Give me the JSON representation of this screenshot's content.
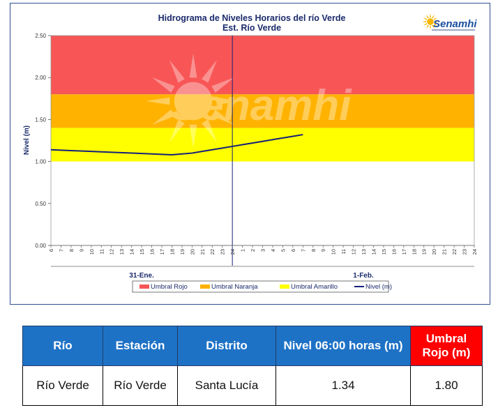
{
  "chart_data": {
    "type": "line",
    "title": "Hidrograma de Niveles Horarios del río Verde",
    "subtitle": "Est. Río Verde",
    "ylabel": "Nivel (m)",
    "ylim": [
      0,
      2.5
    ],
    "yticks": [
      "0.00",
      "0.50",
      "1.00",
      "1.50",
      "2.00",
      "2.50"
    ],
    "xticks": [
      "6",
      "7",
      "8",
      "9",
      "10",
      "11",
      "12",
      "13",
      "14",
      "15",
      "16",
      "17",
      "18",
      "19",
      "20",
      "21",
      "22",
      "23",
      "24",
      "1",
      "2",
      "3",
      "4",
      "5",
      "6",
      "7",
      "8",
      "9",
      "10",
      "11",
      "12",
      "13",
      "14",
      "15",
      "16",
      "17",
      "18",
      "19",
      "20",
      "21",
      "22",
      "23",
      "24"
    ],
    "day_labels": [
      {
        "label": "31-Ene.",
        "tick_index": 9
      },
      {
        "label": "1-Feb.",
        "tick_index": 31
      }
    ],
    "bands": [
      {
        "name": "Umbral Rojo",
        "from": 1.8,
        "to": 2.5,
        "color": "#f85656"
      },
      {
        "name": "Umbral Naranja",
        "from": 1.4,
        "to": 1.8,
        "color": "#ffb200"
      },
      {
        "name": "Umbral Amarillo",
        "from": 1.0,
        "to": 1.4,
        "color": "#ffff00"
      }
    ],
    "series": [
      {
        "name": "Nivel (m)",
        "color": "#14207a",
        "points": [
          [
            0,
            1.14
          ],
          [
            2,
            1.13
          ],
          [
            4,
            1.12
          ],
          [
            6,
            1.11
          ],
          [
            8,
            1.1
          ],
          [
            10,
            1.09
          ],
          [
            12,
            1.08
          ],
          [
            13,
            1.09
          ],
          [
            14,
            1.1
          ],
          [
            15,
            1.12
          ],
          [
            16,
            1.14
          ],
          [
            17,
            1.16
          ],
          [
            18,
            1.18
          ],
          [
            19,
            1.2
          ],
          [
            20,
            1.22
          ],
          [
            21,
            1.24
          ],
          [
            22,
            1.26
          ],
          [
            23,
            1.28
          ],
          [
            24,
            1.3
          ],
          [
            25,
            1.32
          ],
          [
            24.6,
            1.33
          ],
          [
            24.9,
            1.34
          ]
        ]
      }
    ],
    "legend": [
      "Umbral Rojo",
      "Umbral Naranja",
      "Umbral Amarillo",
      "Nivel (m)"
    ],
    "legend_position": "bottom",
    "watermark": "Senamhi",
    "logo_text": "Senamhi"
  },
  "table": {
    "headers": [
      "Río",
      "Estación",
      "Distrito",
      "Nivel 06:00 horas (m)",
      "Umbral Rojo (m)"
    ],
    "row": [
      "Río Verde",
      "Río Verde",
      "Santa Lucía",
      "1.34",
      "1.80"
    ]
  }
}
